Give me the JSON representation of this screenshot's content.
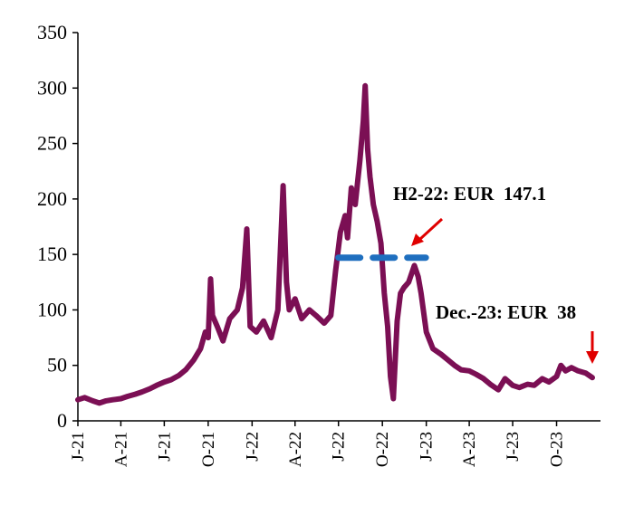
{
  "chart_data": {
    "type": "line",
    "title": "",
    "xlabel": "",
    "ylabel": "",
    "ylim": [
      0,
      350
    ],
    "yticks": [
      0,
      50,
      100,
      150,
      200,
      250,
      300,
      350
    ],
    "xlim": [
      "2021-01-01",
      "2024-01-01"
    ],
    "xticks": [
      {
        "label": "J-21",
        "date": "2021-01-01"
      },
      {
        "label": "A-21",
        "date": "2021-04-01"
      },
      {
        "label": "J-21",
        "date": "2021-07-01"
      },
      {
        "label": "O-21",
        "date": "2021-10-01"
      },
      {
        "label": "J-22",
        "date": "2022-01-01"
      },
      {
        "label": "A-22",
        "date": "2022-04-01"
      },
      {
        "label": "J-22",
        "date": "2022-07-01"
      },
      {
        "label": "O-22",
        "date": "2022-10-01"
      },
      {
        "label": "J-23",
        "date": "2023-01-01"
      },
      {
        "label": "A-23",
        "date": "2023-04-01"
      },
      {
        "label": "J-23",
        "date": "2023-07-01"
      },
      {
        "label": "O-23",
        "date": "2023-10-01"
      }
    ],
    "grid": false,
    "series": [
      {
        "color": "#7b0f54",
        "points": [
          [
            "2021-01-01",
            19
          ],
          [
            "2021-01-15",
            21
          ],
          [
            "2021-02-01",
            18
          ],
          [
            "2021-02-15",
            16
          ],
          [
            "2021-03-01",
            18
          ],
          [
            "2021-03-15",
            19
          ],
          [
            "2021-04-01",
            20
          ],
          [
            "2021-04-15",
            22
          ],
          [
            "2021-05-01",
            24
          ],
          [
            "2021-05-15",
            26
          ],
          [
            "2021-06-01",
            29
          ],
          [
            "2021-06-15",
            32
          ],
          [
            "2021-07-01",
            35
          ],
          [
            "2021-07-15",
            37
          ],
          [
            "2021-08-01",
            41
          ],
          [
            "2021-08-15",
            46
          ],
          [
            "2021-09-01",
            55
          ],
          [
            "2021-09-15",
            65
          ],
          [
            "2021-09-25",
            80
          ],
          [
            "2021-10-01",
            75
          ],
          [
            "2021-10-06",
            128
          ],
          [
            "2021-10-10",
            95
          ],
          [
            "2021-10-20",
            85
          ],
          [
            "2021-11-01",
            72
          ],
          [
            "2021-11-15",
            92
          ],
          [
            "2021-12-01",
            100
          ],
          [
            "2021-12-12",
            120
          ],
          [
            "2021-12-21",
            173
          ],
          [
            "2021-12-28",
            85
          ],
          [
            "2022-01-10",
            80
          ],
          [
            "2022-01-25",
            90
          ],
          [
            "2022-02-10",
            75
          ],
          [
            "2022-02-24",
            100
          ],
          [
            "2022-03-07",
            212
          ],
          [
            "2022-03-14",
            125
          ],
          [
            "2022-03-20",
            100
          ],
          [
            "2022-04-01",
            110
          ],
          [
            "2022-04-15",
            92
          ],
          [
            "2022-05-01",
            100
          ],
          [
            "2022-05-15",
            95
          ],
          [
            "2022-06-01",
            88
          ],
          [
            "2022-06-15",
            95
          ],
          [
            "2022-06-25",
            135
          ],
          [
            "2022-07-05",
            170
          ],
          [
            "2022-07-15",
            185
          ],
          [
            "2022-07-20",
            165
          ],
          [
            "2022-07-28",
            210
          ],
          [
            "2022-08-05",
            195
          ],
          [
            "2022-08-15",
            235
          ],
          [
            "2022-08-22",
            270
          ],
          [
            "2022-08-26",
            302
          ],
          [
            "2022-08-31",
            245
          ],
          [
            "2022-09-05",
            220
          ],
          [
            "2022-09-12",
            195
          ],
          [
            "2022-09-20",
            180
          ],
          [
            "2022-09-28",
            160
          ],
          [
            "2022-10-05",
            115
          ],
          [
            "2022-10-12",
            85
          ],
          [
            "2022-10-18",
            40
          ],
          [
            "2022-10-24",
            20
          ],
          [
            "2022-11-01",
            90
          ],
          [
            "2022-11-08",
            115
          ],
          [
            "2022-11-15",
            120
          ],
          [
            "2022-11-25",
            125
          ],
          [
            "2022-12-07",
            140
          ],
          [
            "2022-12-15",
            130
          ],
          [
            "2022-12-21",
            115
          ],
          [
            "2023-01-01",
            80
          ],
          [
            "2023-01-15",
            65
          ],
          [
            "2023-02-01",
            60
          ],
          [
            "2023-02-15",
            55
          ],
          [
            "2023-03-01",
            50
          ],
          [
            "2023-03-15",
            46
          ],
          [
            "2023-04-01",
            45
          ],
          [
            "2023-04-15",
            42
          ],
          [
            "2023-05-01",
            38
          ],
          [
            "2023-05-15",
            33
          ],
          [
            "2023-06-01",
            28
          ],
          [
            "2023-06-15",
            38
          ],
          [
            "2023-07-01",
            32
          ],
          [
            "2023-07-15",
            30
          ],
          [
            "2023-08-01",
            33
          ],
          [
            "2023-08-15",
            32
          ],
          [
            "2023-09-01",
            38
          ],
          [
            "2023-09-15",
            35
          ],
          [
            "2023-10-01",
            40
          ],
          [
            "2023-10-10",
            50
          ],
          [
            "2023-10-20",
            45
          ],
          [
            "2023-11-01",
            48
          ],
          [
            "2023-11-15",
            45
          ],
          [
            "2023-12-01",
            43
          ],
          [
            "2023-12-15",
            39
          ]
        ]
      }
    ],
    "reference_lines": [
      {
        "label": "H2-22: EUR  147.1",
        "value": 147.1,
        "from": "2022-07-01",
        "to": "2022-12-31",
        "color": "#1f6fbf",
        "style": "dashed"
      }
    ],
    "annotations": [
      {
        "text": "H2-22: EUR  147.1",
        "arrow_to": [
          "2022-11-10",
          152
        ],
        "arrow_color": "#e00000"
      },
      {
        "text": "Dec.-23: EUR  38",
        "arrow_to": [
          "2023-12-15",
          50
        ],
        "arrow_color": "#e00000"
      }
    ]
  }
}
